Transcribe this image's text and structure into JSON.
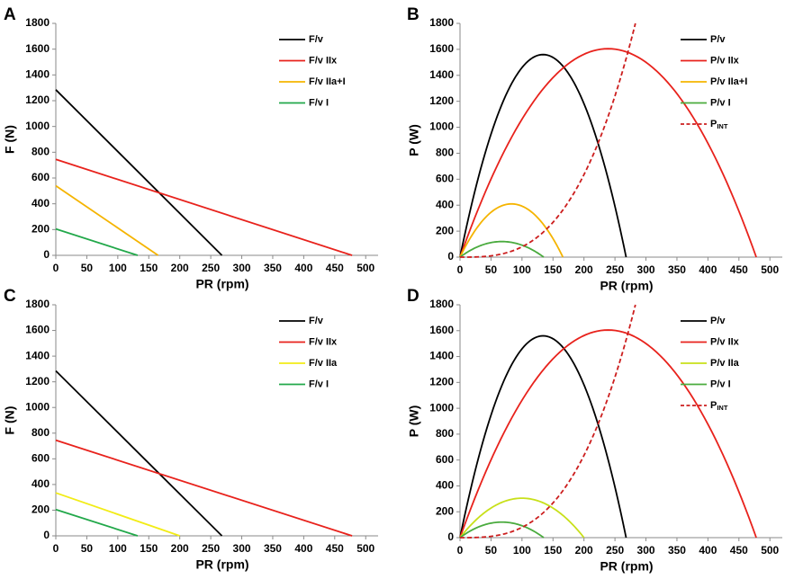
{
  "chart_data": [
    {
      "type": "line",
      "panel_label": "A",
      "xlabel": "PR (rpm)",
      "ylabel": "F (N)",
      "xlim": [
        0,
        520
      ],
      "ylim": [
        0,
        1800
      ],
      "xticks": [
        0,
        50,
        100,
        150,
        200,
        250,
        300,
        350,
        400,
        450,
        500
      ],
      "yticks": [
        0,
        200,
        400,
        600,
        800,
        1000,
        1200,
        1400,
        1600,
        1800
      ],
      "legend_position": "top-right",
      "series": [
        {
          "name": "F/v",
          "kind": "linear",
          "color": "#000000",
          "dash": "",
          "f0": 1285,
          "v0": 268
        },
        {
          "name": "F/v IIx",
          "kind": "linear",
          "color": "#e8221c",
          "dash": "",
          "f0": 745,
          "v0": 478
        },
        {
          "name": "F/v IIa+I",
          "kind": "linear",
          "color": "#f5b400",
          "dash": "",
          "f0": 540,
          "v0": 165
        },
        {
          "name": "F/v I",
          "kind": "linear",
          "color": "#22a84a",
          "dash": "",
          "f0": 205,
          "v0": 132
        }
      ]
    },
    {
      "type": "line",
      "panel_label": "B",
      "xlabel": "PR (rpm)",
      "ylabel": "P (W)",
      "xlim": [
        0,
        520
      ],
      "ylim": [
        0,
        1800
      ],
      "xticks": [
        0,
        50,
        100,
        150,
        200,
        250,
        300,
        350,
        400,
        450,
        500
      ],
      "yticks": [
        0,
        200,
        400,
        600,
        800,
        1000,
        1200,
        1400,
        1600,
        1800
      ],
      "legend_position": "top-right",
      "series": [
        {
          "name": "P/v",
          "kind": "parabola",
          "color": "#000000",
          "dash": "",
          "pmax": 1560,
          "v0": 268
        },
        {
          "name": "P/v IIx",
          "kind": "parabola",
          "color": "#e8221c",
          "dash": "",
          "pmax": 1605,
          "v0": 478
        },
        {
          "name": "P/v IIa+I",
          "kind": "parabola",
          "color": "#f5b400",
          "dash": "",
          "pmax": 410,
          "v0": 166
        },
        {
          "name": "P/v I",
          "kind": "parabola",
          "color": "#4aab3e",
          "dash": "",
          "pmax": 120,
          "v0": 135
        },
        {
          "name": "P",
          "name_sub": "INT",
          "kind": "power",
          "color": "#cc1e1e",
          "dash": "5,3",
          "coef": 1800,
          "vref": 283,
          "exp": 3,
          "vmax": 283
        }
      ]
    },
    {
      "type": "line",
      "panel_label": "C",
      "xlabel": "PR (rpm)",
      "ylabel": "F (N)",
      "xlim": [
        0,
        520
      ],
      "ylim": [
        0,
        1800
      ],
      "xticks": [
        0,
        50,
        100,
        150,
        200,
        250,
        300,
        350,
        400,
        450,
        500
      ],
      "yticks": [
        0,
        200,
        400,
        600,
        800,
        1000,
        1200,
        1400,
        1600,
        1800
      ],
      "legend_position": "top-right",
      "series": [
        {
          "name": "F/v",
          "kind": "linear",
          "color": "#000000",
          "dash": "",
          "f0": 1285,
          "v0": 268
        },
        {
          "name": "F/v IIx",
          "kind": "linear",
          "color": "#e8221c",
          "dash": "",
          "f0": 745,
          "v0": 478
        },
        {
          "name": "F/v IIa",
          "kind": "linear",
          "color": "#f2ec16",
          "dash": "",
          "f0": 335,
          "v0": 200
        },
        {
          "name": "F/v I",
          "kind": "linear",
          "color": "#22a84a",
          "dash": "",
          "f0": 205,
          "v0": 132
        }
      ]
    },
    {
      "type": "line",
      "panel_label": "D",
      "xlabel": "PR (rpm)",
      "ylabel": "P (W)",
      "xlim": [
        0,
        520
      ],
      "ylim": [
        0,
        1800
      ],
      "xticks": [
        0,
        50,
        100,
        150,
        200,
        250,
        300,
        350,
        400,
        450,
        500
      ],
      "yticks": [
        0,
        200,
        400,
        600,
        800,
        1000,
        1200,
        1400,
        1600,
        1800
      ],
      "legend_position": "top-right",
      "series": [
        {
          "name": "P/v",
          "kind": "parabola",
          "color": "#000000",
          "dash": "",
          "pmax": 1560,
          "v0": 268
        },
        {
          "name": "P/v IIx",
          "kind": "parabola",
          "color": "#e8221c",
          "dash": "",
          "pmax": 1605,
          "v0": 478
        },
        {
          "name": "P/v IIa",
          "kind": "parabola",
          "color": "#c8e01a",
          "dash": "",
          "pmax": 305,
          "v0": 200
        },
        {
          "name": "P/v I",
          "kind": "parabola",
          "color": "#4aab3e",
          "dash": "",
          "pmax": 120,
          "v0": 135
        },
        {
          "name": "P",
          "name_sub": "INT",
          "kind": "power",
          "color": "#cc1e1e",
          "dash": "5,3",
          "coef": 1800,
          "vref": 283,
          "exp": 3,
          "vmax": 283
        }
      ]
    }
  ]
}
